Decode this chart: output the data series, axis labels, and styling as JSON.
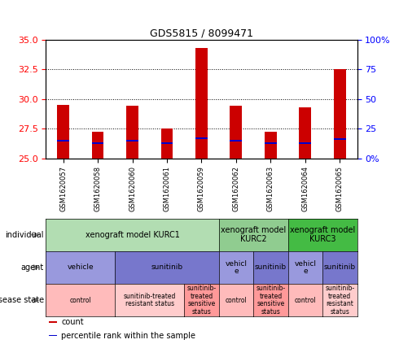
{
  "title": "GDS5815 / 8099471",
  "samples": [
    "GSM1620057",
    "GSM1620058",
    "GSM1620060",
    "GSM1620061",
    "GSM1620059",
    "GSM1620062",
    "GSM1620063",
    "GSM1620064",
    "GSM1620065"
  ],
  "count_values": [
    29.5,
    27.2,
    29.4,
    27.5,
    34.3,
    29.4,
    27.2,
    29.3,
    32.5
  ],
  "percentile_values": [
    26.5,
    26.3,
    26.5,
    26.3,
    26.7,
    26.5,
    26.3,
    26.3,
    26.6
  ],
  "ylim": [
    25,
    35
  ],
  "yticks_left": [
    25,
    27.5,
    30,
    32.5,
    35
  ],
  "yticks_right_labels": [
    "0%",
    "25",
    "50",
    "75",
    "100%"
  ],
  "bar_color": "#cc0000",
  "percentile_color": "#0000cc",
  "individual_row": {
    "spans": [
      {
        "start": 0,
        "end": 4,
        "label": "xenograft model KURC1",
        "color": "#b2ddb2"
      },
      {
        "start": 5,
        "end": 6,
        "label": "xenograft model\nKURC2",
        "color": "#90cc90"
      },
      {
        "start": 7,
        "end": 8,
        "label": "xenograft model\nKURC3",
        "color": "#44bb44"
      }
    ]
  },
  "agent_row": {
    "spans": [
      {
        "start": 0,
        "end": 1,
        "label": "vehicle",
        "color": "#9999dd"
      },
      {
        "start": 2,
        "end": 4,
        "label": "sunitinib",
        "color": "#7777cc"
      },
      {
        "start": 5,
        "end": 5,
        "label": "vehicl\ne",
        "color": "#9999dd"
      },
      {
        "start": 6,
        "end": 6,
        "label": "sunitinib",
        "color": "#7777cc"
      },
      {
        "start": 7,
        "end": 7,
        "label": "vehicl\ne",
        "color": "#9999dd"
      },
      {
        "start": 8,
        "end": 8,
        "label": "sunitinib",
        "color": "#7777cc"
      }
    ]
  },
  "disease_row": {
    "spans": [
      {
        "start": 0,
        "end": 1,
        "label": "control",
        "color": "#ffbbbb"
      },
      {
        "start": 2,
        "end": 3,
        "label": "sunitinib-treated\nresistant status",
        "color": "#ffcccc"
      },
      {
        "start": 4,
        "end": 4,
        "label": "sunitinib-\ntreated\nsensitive\nstatus",
        "color": "#ff9999"
      },
      {
        "start": 5,
        "end": 5,
        "label": "control",
        "color": "#ffbbbb"
      },
      {
        "start": 6,
        "end": 6,
        "label": "sunitinib-\ntreated\nsensitive\nstatus",
        "color": "#ff9999"
      },
      {
        "start": 7,
        "end": 7,
        "label": "control",
        "color": "#ffbbbb"
      },
      {
        "start": 8,
        "end": 8,
        "label": "sunitinib-\ntreated\nresistant\nstatus",
        "color": "#ffcccc"
      }
    ]
  },
  "row_labels": [
    "individual",
    "agent",
    "disease state"
  ],
  "legend_items": [
    {
      "color": "#cc0000",
      "label": "count"
    },
    {
      "color": "#0000cc",
      "label": "percentile rank within the sample"
    }
  ],
  "fig_width": 4.9,
  "fig_height": 4.23,
  "dpi": 100
}
